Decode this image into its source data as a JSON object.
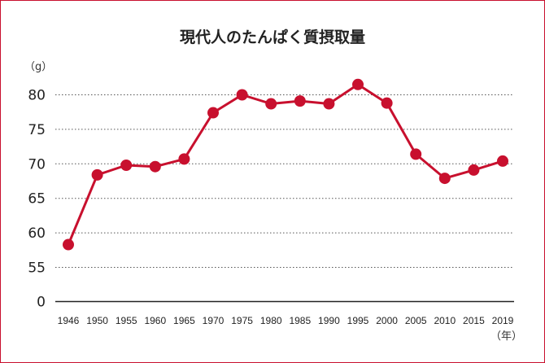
{
  "chart_data": {
    "type": "line",
    "title": "現代人のたんぱく質摂取量",
    "ylabel": "（g）",
    "xlabel": "（年）",
    "categories": [
      "1946",
      "1950",
      "1955",
      "1960",
      "1965",
      "1970",
      "1975",
      "1980",
      "1985",
      "1990",
      "1995",
      "2000",
      "2005",
      "2010",
      "2015",
      "2019"
    ],
    "values": [
      58.3,
      68.4,
      69.8,
      69.6,
      70.7,
      77.4,
      80.0,
      78.7,
      79.1,
      78.7,
      81.5,
      78.8,
      71.4,
      67.9,
      69.1,
      70.4
    ],
    "ylim": [
      0,
      80
    ],
    "yticks": [
      0,
      55,
      60,
      65,
      70,
      75,
      80
    ],
    "axis_break": [
      0,
      55
    ],
    "grid": true,
    "color": "#c8102e"
  }
}
